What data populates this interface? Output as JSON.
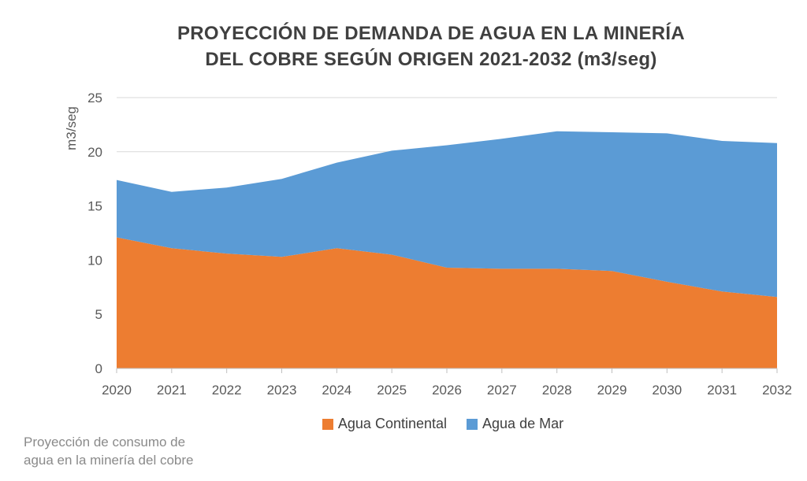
{
  "title_line1": "PROYECCIÓN DE DEMANDA DE AGUA EN LA MINERÍA",
  "title_line2": "DEL COBRE SEGÚN ORIGEN 2021-2032 (m3/seg)",
  "caption_line1": "Proyección de consumo de",
  "caption_line2": "agua en la minería del cobre",
  "colors": {
    "continental": "#ed7d31",
    "mar": "#5b9bd5",
    "grid": "#d9d9d9",
    "axis_text": "#595959"
  },
  "chart_data": {
    "type": "area",
    "stacked": true,
    "ylabel": "m3/seg",
    "xlabel": "",
    "ylim": [
      0,
      25
    ],
    "yticks": [
      0,
      5,
      10,
      15,
      20,
      25
    ],
    "grid": true,
    "legend_position": "bottom",
    "categories": [
      "2020",
      "2021",
      "2022",
      "2023",
      "2024",
      "2025",
      "2026",
      "2027",
      "2028",
      "2029",
      "2030",
      "2031",
      "2032"
    ],
    "series": [
      {
        "name": "Agua Continental",
        "values": [
          12.1,
          11.1,
          10.6,
          10.3,
          11.1,
          10.5,
          9.3,
          9.2,
          9.2,
          9.0,
          8.0,
          7.1,
          6.6
        ]
      },
      {
        "name": "Agua de Mar",
        "values": [
          5.3,
          5.2,
          6.1,
          7.2,
          7.9,
          9.6,
          11.3,
          12.0,
          12.7,
          12.8,
          13.7,
          13.9,
          14.2
        ]
      }
    ]
  }
}
